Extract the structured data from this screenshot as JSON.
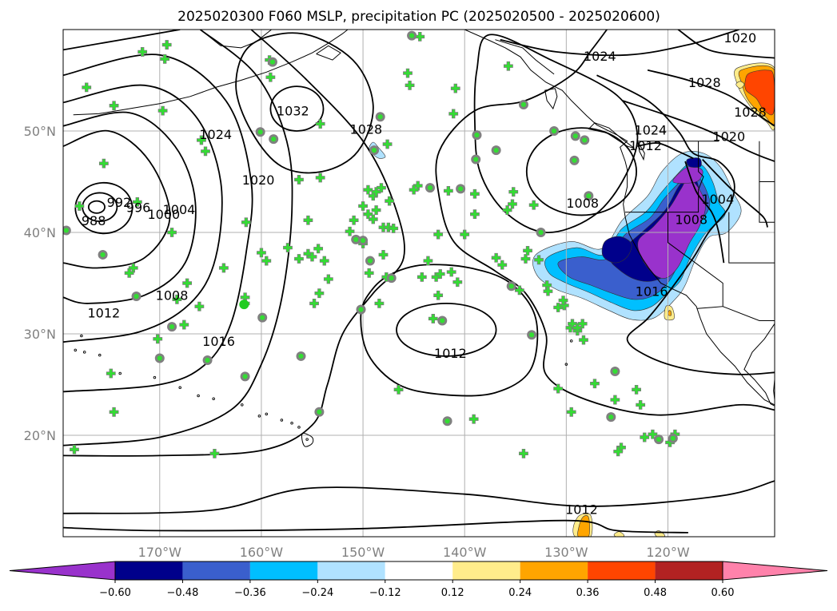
{
  "chart_data": {
    "type": "contour-map",
    "title": "2025020300 F060 MSLP, precipitation PC (2025020500 - 2025020600)",
    "lon_range": [
      -179.5,
      -109.5
    ],
    "lat_range": [
      10,
      60
    ],
    "x_ticks": [
      -170,
      -160,
      -150,
      -140,
      -130,
      -120
    ],
    "x_tick_labels": [
      "170°W",
      "160°W",
      "150°W",
      "140°W",
      "130°W",
      "120°W"
    ],
    "y_ticks": [
      20,
      30,
      40,
      50
    ],
    "y_tick_labels": [
      "20°N",
      "30°N",
      "40°N",
      "50°N"
    ],
    "grid": true,
    "isobar_labels": [
      {
        "text": "988",
        "lon": -176.5,
        "lat": 41.2
      },
      {
        "text": "992",
        "lon": -174.0,
        "lat": 43.0
      },
      {
        "text": "996",
        "lon": -172.1,
        "lat": 42.5
      },
      {
        "text": "1000",
        "lon": -169.6,
        "lat": 41.8
      },
      {
        "text": "1004",
        "lon": -168.1,
        "lat": 42.3
      },
      {
        "text": "1008",
        "lon": -168.8,
        "lat": 33.8
      },
      {
        "text": "1012",
        "lon": -175.5,
        "lat": 32.1
      },
      {
        "text": "1016",
        "lon": -164.2,
        "lat": 29.3
      },
      {
        "text": "1020",
        "lon": -160.3,
        "lat": 45.2
      },
      {
        "text": "1024",
        "lon": -164.5,
        "lat": 49.7
      },
      {
        "text": "1028",
        "lon": -149.7,
        "lat": 50.2
      },
      {
        "text": "1032",
        "lon": -156.9,
        "lat": 52.0
      },
      {
        "text": "1012",
        "lon": -141.4,
        "lat": 28.1
      },
      {
        "text": "1008",
        "lon": -128.4,
        "lat": 42.9
      },
      {
        "text": "1012",
        "lon": -128.5,
        "lat": 12.7
      },
      {
        "text": "1024",
        "lon": -126.7,
        "lat": 57.4
      },
      {
        "text": "1024",
        "lon": -121.7,
        "lat": 50.1
      },
      {
        "text": "1020",
        "lon": -112.9,
        "lat": 59.2
      },
      {
        "text": "1028",
        "lon": -111.9,
        "lat": 51.9
      },
      {
        "text": "1012",
        "lon": -122.2,
        "lat": 48.6
      },
      {
        "text": "1004",
        "lon": -115.1,
        "lat": 43.3
      },
      {
        "text": "1008",
        "lon": -117.7,
        "lat": 41.3
      },
      {
        "text": "1016",
        "lon": -121.6,
        "lat": 34.2
      },
      {
        "text": "1020",
        "lon": -114.0,
        "lat": 49.5
      },
      {
        "text": "1028",
        "lon": -116.4,
        "lat": 54.8
      }
    ],
    "colorbar": {
      "tick_labels": [
        "−0.60",
        "−0.48",
        "−0.36",
        "−0.24",
        "−0.12",
        "0.12",
        "0.24",
        "0.36",
        "0.48",
        "0.60"
      ],
      "colors": [
        "#9932cc",
        "#00008b",
        "#3a5fcd",
        "#00bfff",
        "#b0e2ff",
        "#ffffff",
        "#ffec8b",
        "#ffa500",
        "#ff4500",
        "#b22222",
        "#ff82ab"
      ],
      "extend": "both"
    },
    "markers": {
      "plus_color": "#33dd33",
      "circle_color": "#808080",
      "highlight_color": "#22cc22"
    }
  }
}
